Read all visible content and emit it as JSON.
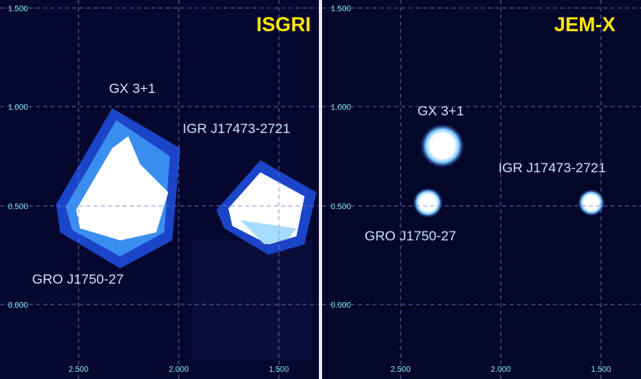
{
  "panels": [
    {
      "title": "ISGRI",
      "sources": [
        "GX 3+1",
        "IGR J17473-2721",
        "GRO J1750-27"
      ],
      "yticks": [
        "1.500",
        "1.000",
        "0.500",
        "0.000"
      ],
      "xticks": [
        "2.500",
        "2.000",
        "1.500"
      ]
    },
    {
      "title": "JEM-X",
      "sources": [
        "GX 3+1",
        "IGR J17473-2721",
        "GRO J1750-27"
      ],
      "yticks": [
        "1.500",
        "1.000",
        "0.500",
        "0.000"
      ],
      "xticks": [
        "2.500",
        "2.000",
        "1.500"
      ]
    }
  ]
}
